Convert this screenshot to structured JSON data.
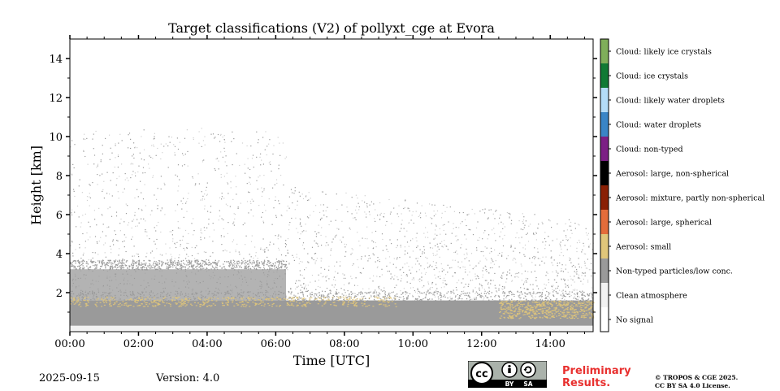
{
  "chart_data": {
    "type": "heatmap",
    "title": "Target classifications (V2) of pollyxt_cge at Evora",
    "xlabel": "Time [UTC]",
    "ylabel": "Height [km]",
    "xlim": [
      0,
      15.25
    ],
    "ylim": [
      0,
      15
    ],
    "x_ticks": [
      "00:00",
      "02:00",
      "04:00",
      "06:00",
      "08:00",
      "10:00",
      "12:00",
      "14:00"
    ],
    "x_tick_values": [
      0,
      2,
      4,
      6,
      8,
      10,
      12,
      14
    ],
    "y_ticks": [
      "2",
      "4",
      "6",
      "8",
      "10",
      "12",
      "14"
    ],
    "y_tick_values": [
      2,
      4,
      6,
      8,
      10,
      12,
      14
    ],
    "classes": [
      {
        "value": 11,
        "label": "Cloud: likely ice crystals",
        "color": "#7fae5a"
      },
      {
        "value": 10,
        "label": "Cloud: ice crystals",
        "color": "#117a34"
      },
      {
        "value": 9,
        "label": "Cloud: likely water droplets",
        "color": "#b4dcf7"
      },
      {
        "value": 8,
        "label": "Cloud: water droplets",
        "color": "#3a85c6"
      },
      {
        "value": 7,
        "label": "Cloud: non-typed",
        "color": "#7c1f85"
      },
      {
        "value": 6,
        "label": "Aerosol: large, non-spherical",
        "color": "#000000"
      },
      {
        "value": 5,
        "label": "Aerosol: mixture, partly non-spherical",
        "color": "#8a2005"
      },
      {
        "value": 4,
        "label": "Aerosol: large, spherical",
        "color": "#e46c3a"
      },
      {
        "value": 3,
        "label": "Aerosol: small",
        "color": "#e0c67a"
      },
      {
        "value": 2,
        "label": "Non-typed particles/low conc.",
        "color": "#9a9a9a"
      },
      {
        "value": 1,
        "label": "Clean atmosphere",
        "color": "#f2f2f2"
      },
      {
        "value": 0,
        "label": "No signal",
        "color": "#ffffff"
      }
    ],
    "layers": [
      {
        "class": "Non-typed particles/low conc.",
        "time_range": [
          0,
          15.25
        ],
        "height_range_km": [
          0.3,
          1.6
        ]
      },
      {
        "class": "Non-typed particles/low conc.",
        "time_range": [
          0,
          6.3
        ],
        "height_range_km": [
          1.6,
          3.2
        ]
      },
      {
        "class": "Aerosol: small",
        "time_range": [
          0,
          9.5
        ],
        "height_range_km": [
          1.3,
          1.8
        ]
      },
      {
        "class": "Aerosol: small",
        "time_range": [
          12.5,
          15.25
        ],
        "height_range_km": [
          0.7,
          1.6
        ]
      }
    ]
  },
  "footer": {
    "date": "2025-09-15",
    "version": "Version: 4.0",
    "preliminary_line1": "Preliminary",
    "preliminary_line2": "Results.",
    "copyright_line1": "© TROPOS & CGE 2025.",
    "copyright_line2": "CC BY SA 4.0 License.",
    "license_badge": {
      "cc": "cc",
      "by": "BY",
      "sa": "SA"
    }
  }
}
